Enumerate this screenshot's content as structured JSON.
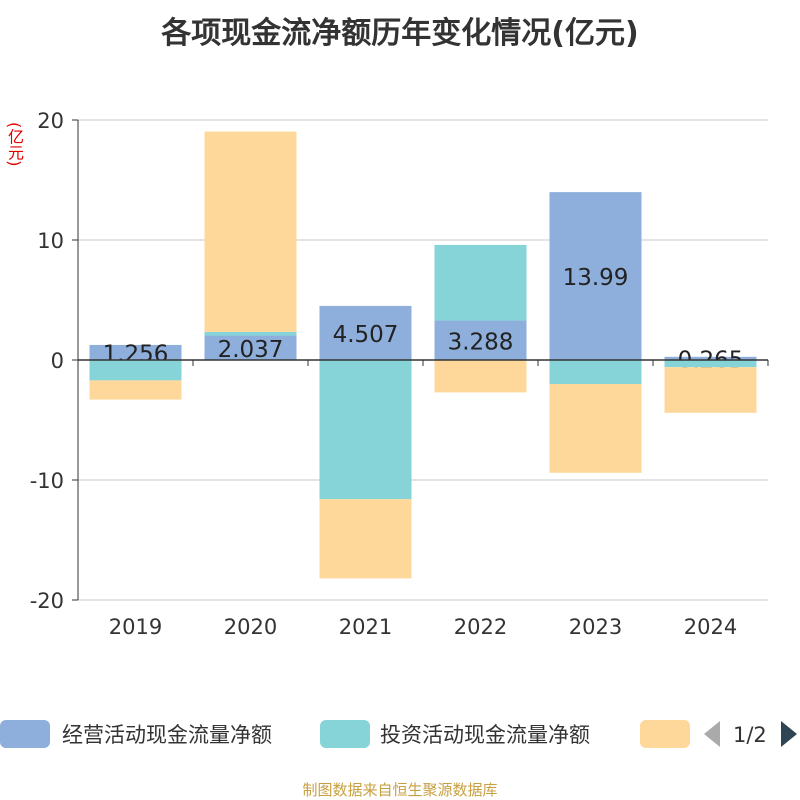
{
  "chart_data": {
    "type": "bar",
    "stacked": true,
    "title": "各项现金流净额历年变化情况(亿元)",
    "ylabel": "(亿元)",
    "ylim": [
      -20,
      20
    ],
    "yticks": [
      20,
      10,
      0,
      -10,
      -20
    ],
    "ytick_labels": [
      "20",
      "10",
      "0",
      "-10",
      "-20"
    ],
    "categories": [
      "2019",
      "2020",
      "2021",
      "2022",
      "2023",
      "2024"
    ],
    "series": [
      {
        "name": "经营活动现金流量净额",
        "color": "#8eaedb",
        "values": [
          1.256,
          2.037,
          4.507,
          3.288,
          13.99,
          0.265
        ],
        "labels": [
          "1.256",
          "2.037",
          "4.507",
          "3.288",
          "13.99",
          "0.265"
        ]
      },
      {
        "name": "投资活动现金流量净额",
        "color": "#86d4d8",
        "values": [
          -1.7,
          0.3,
          -11.6,
          6.3,
          -2.0,
          -0.6
        ]
      },
      {
        "name": "",
        "color": "#fed89a",
        "values": [
          -1.6,
          16.7,
          -6.6,
          -2.7,
          -7.4,
          -3.8
        ]
      }
    ],
    "legend_page": "1/2"
  },
  "footer": {
    "source": "制图数据来自恒生聚源数据库"
  }
}
